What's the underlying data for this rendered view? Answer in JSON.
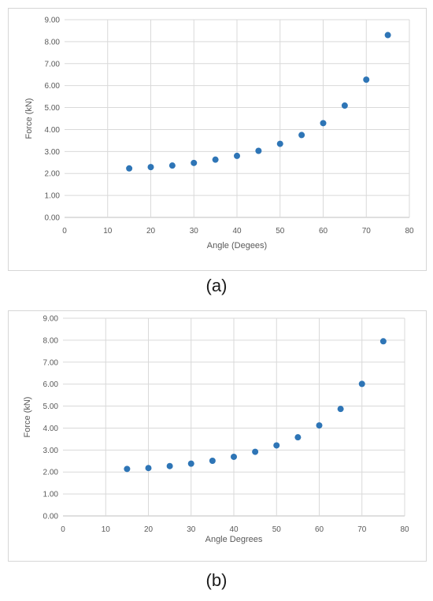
{
  "chart_data": [
    {
      "type": "scatter",
      "caption": "(a)",
      "xlabel": "Angle (Degees)",
      "ylabel": "Force (kN)",
      "xlim": [
        0,
        80
      ],
      "ylim": [
        0,
        9
      ],
      "x_ticks": [
        "0",
        "10",
        "20",
        "30",
        "40",
        "50",
        "60",
        "70",
        "80"
      ],
      "y_ticks": [
        "0.00",
        "1.00",
        "2.00",
        "3.00",
        "4.00",
        "5.00",
        "6.00",
        "7.00",
        "8.00",
        "9.00"
      ],
      "grid": "vertical-and-horizontal",
      "marker_color": "#2E75B6",
      "series": [
        {
          "x": [
            15,
            20,
            25,
            30,
            35,
            40,
            45,
            50,
            55,
            60,
            65,
            70,
            75
          ],
          "y": [
            2.23,
            2.29,
            2.36,
            2.48,
            2.63,
            2.8,
            3.03,
            3.35,
            3.75,
            4.29,
            5.09,
            6.27,
            8.3
          ]
        }
      ]
    },
    {
      "type": "scatter",
      "caption": "(b)",
      "xlabel": "Angle Degrees",
      "ylabel": "Force (kN)",
      "xlim": [
        0,
        80
      ],
      "ylim": [
        0,
        9
      ],
      "x_ticks": [
        "0",
        "10",
        "20",
        "30",
        "40",
        "50",
        "60",
        "70",
        "80"
      ],
      "y_ticks": [
        "0.00",
        "1.00",
        "2.00",
        "3.00",
        "4.00",
        "5.00",
        "6.00",
        "7.00",
        "8.00",
        "9.00"
      ],
      "grid": "vertical-and-horizontal",
      "marker_color": "#2E75B6",
      "series": [
        {
          "x": [
            15,
            20,
            25,
            30,
            35,
            40,
            45,
            50,
            55,
            60,
            65,
            70,
            75
          ],
          "y": [
            2.14,
            2.18,
            2.27,
            2.38,
            2.51,
            2.69,
            2.92,
            3.21,
            3.58,
            4.12,
            4.87,
            6.01,
            7.95
          ]
        }
      ]
    }
  ]
}
